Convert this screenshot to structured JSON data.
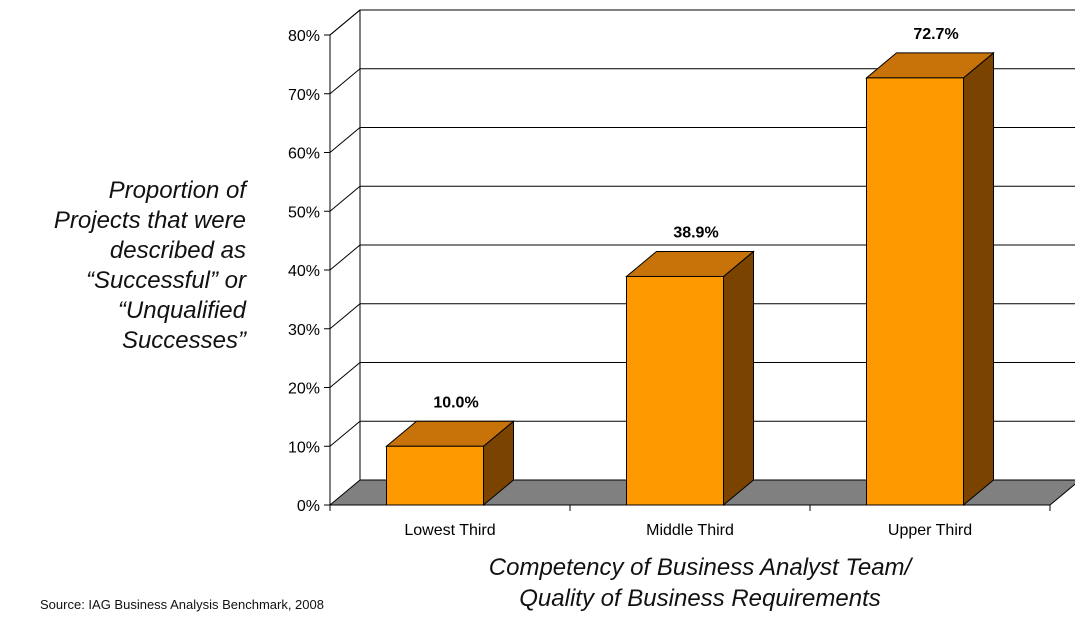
{
  "chart_data": {
    "type": "bar",
    "categories": [
      "Lowest Third",
      "Middle Third",
      "Upper Third"
    ],
    "values": [
      10.0,
      38.9,
      72.7
    ],
    "data_labels": [
      "10.0%",
      "38.9%",
      "72.7%"
    ],
    "ylabel_lines": [
      "Proportion of",
      "Projects that were",
      "described as",
      "“Successful” or",
      "“Unqualified",
      "Successes”"
    ],
    "xlabel_lines": [
      "Competency of Business Analyst Team/",
      "Quality of Business Requirements"
    ],
    "ylim": [
      0,
      80
    ],
    "yticks": [
      0,
      10,
      20,
      30,
      40,
      50,
      60,
      70,
      80
    ],
    "ytick_labels": [
      "0%",
      "10%",
      "20%",
      "30%",
      "40%",
      "50%",
      "60%",
      "70%",
      "80%"
    ],
    "grid": true,
    "legend": "none",
    "style": "3d-column",
    "colors": {
      "bar_front": "#ff9900",
      "bar_top": "#c8730a",
      "bar_side": "#7a4300",
      "floor": "#808080"
    }
  },
  "source_note": "Source:  IAG Business Analysis Benchmark, 2008"
}
